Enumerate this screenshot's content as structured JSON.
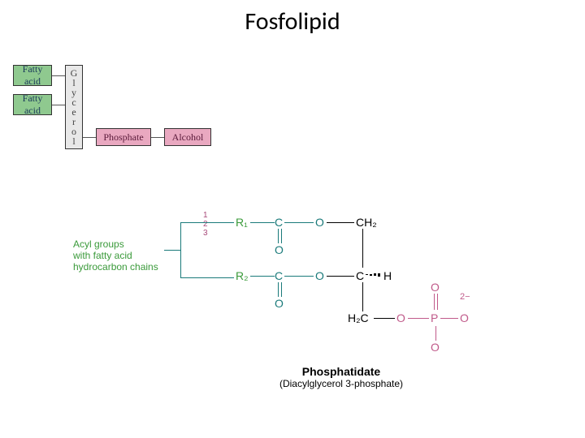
{
  "title": "Fosfolipid",
  "blocks": {
    "fatty1": {
      "label": "Fatty\nacid",
      "bg": "#8fc98f",
      "text_color": "#1a3a5a"
    },
    "fatty2": {
      "label": "Fatty\nacid",
      "bg": "#8fc98f",
      "text_color": "#1a3a5a"
    },
    "glycerol": {
      "letters": [
        "G",
        "l",
        "y",
        "c",
        "e",
        "r",
        "o",
        "l"
      ],
      "bg": "#e8e8e8",
      "text_color": "#444"
    },
    "phosphate": {
      "label": "Phosphate",
      "bg": "#e9a8c0",
      "text_color": "#5a1a3a"
    },
    "alcohol": {
      "label": "Alcohol",
      "bg": "#e9a8c0",
      "text_color": "#5a1a3a"
    }
  },
  "annotation": {
    "text": "Acyl groups\nwith fatty acid\nhydrocarbon chains",
    "color": "#3a9a3a"
  },
  "structure": {
    "r1": "R₁",
    "r2": "R₂",
    "atoms": {
      "O_top1": "O",
      "O_top2": "O",
      "O_mid1": "O",
      "O_mid2": "O",
      "CH2_1": "CH₂",
      "CH": "H",
      "C2": "C",
      "H2C": "H₂C",
      "O_br": "O",
      "P": "P",
      "O_p1": "O",
      "O_p2": "O",
      "O_p3": "O",
      "n1": "1",
      "n2": "2",
      "n3": "3",
      "charge": "2−"
    },
    "colors": {
      "teal": "#1a7a7a",
      "pink": "#c05a8a",
      "green": "#3a9a3a",
      "black": "#000000"
    }
  },
  "caption": {
    "bold": "Phosphatidate",
    "normal": "(Diacylglycerol 3-phosphate)"
  }
}
